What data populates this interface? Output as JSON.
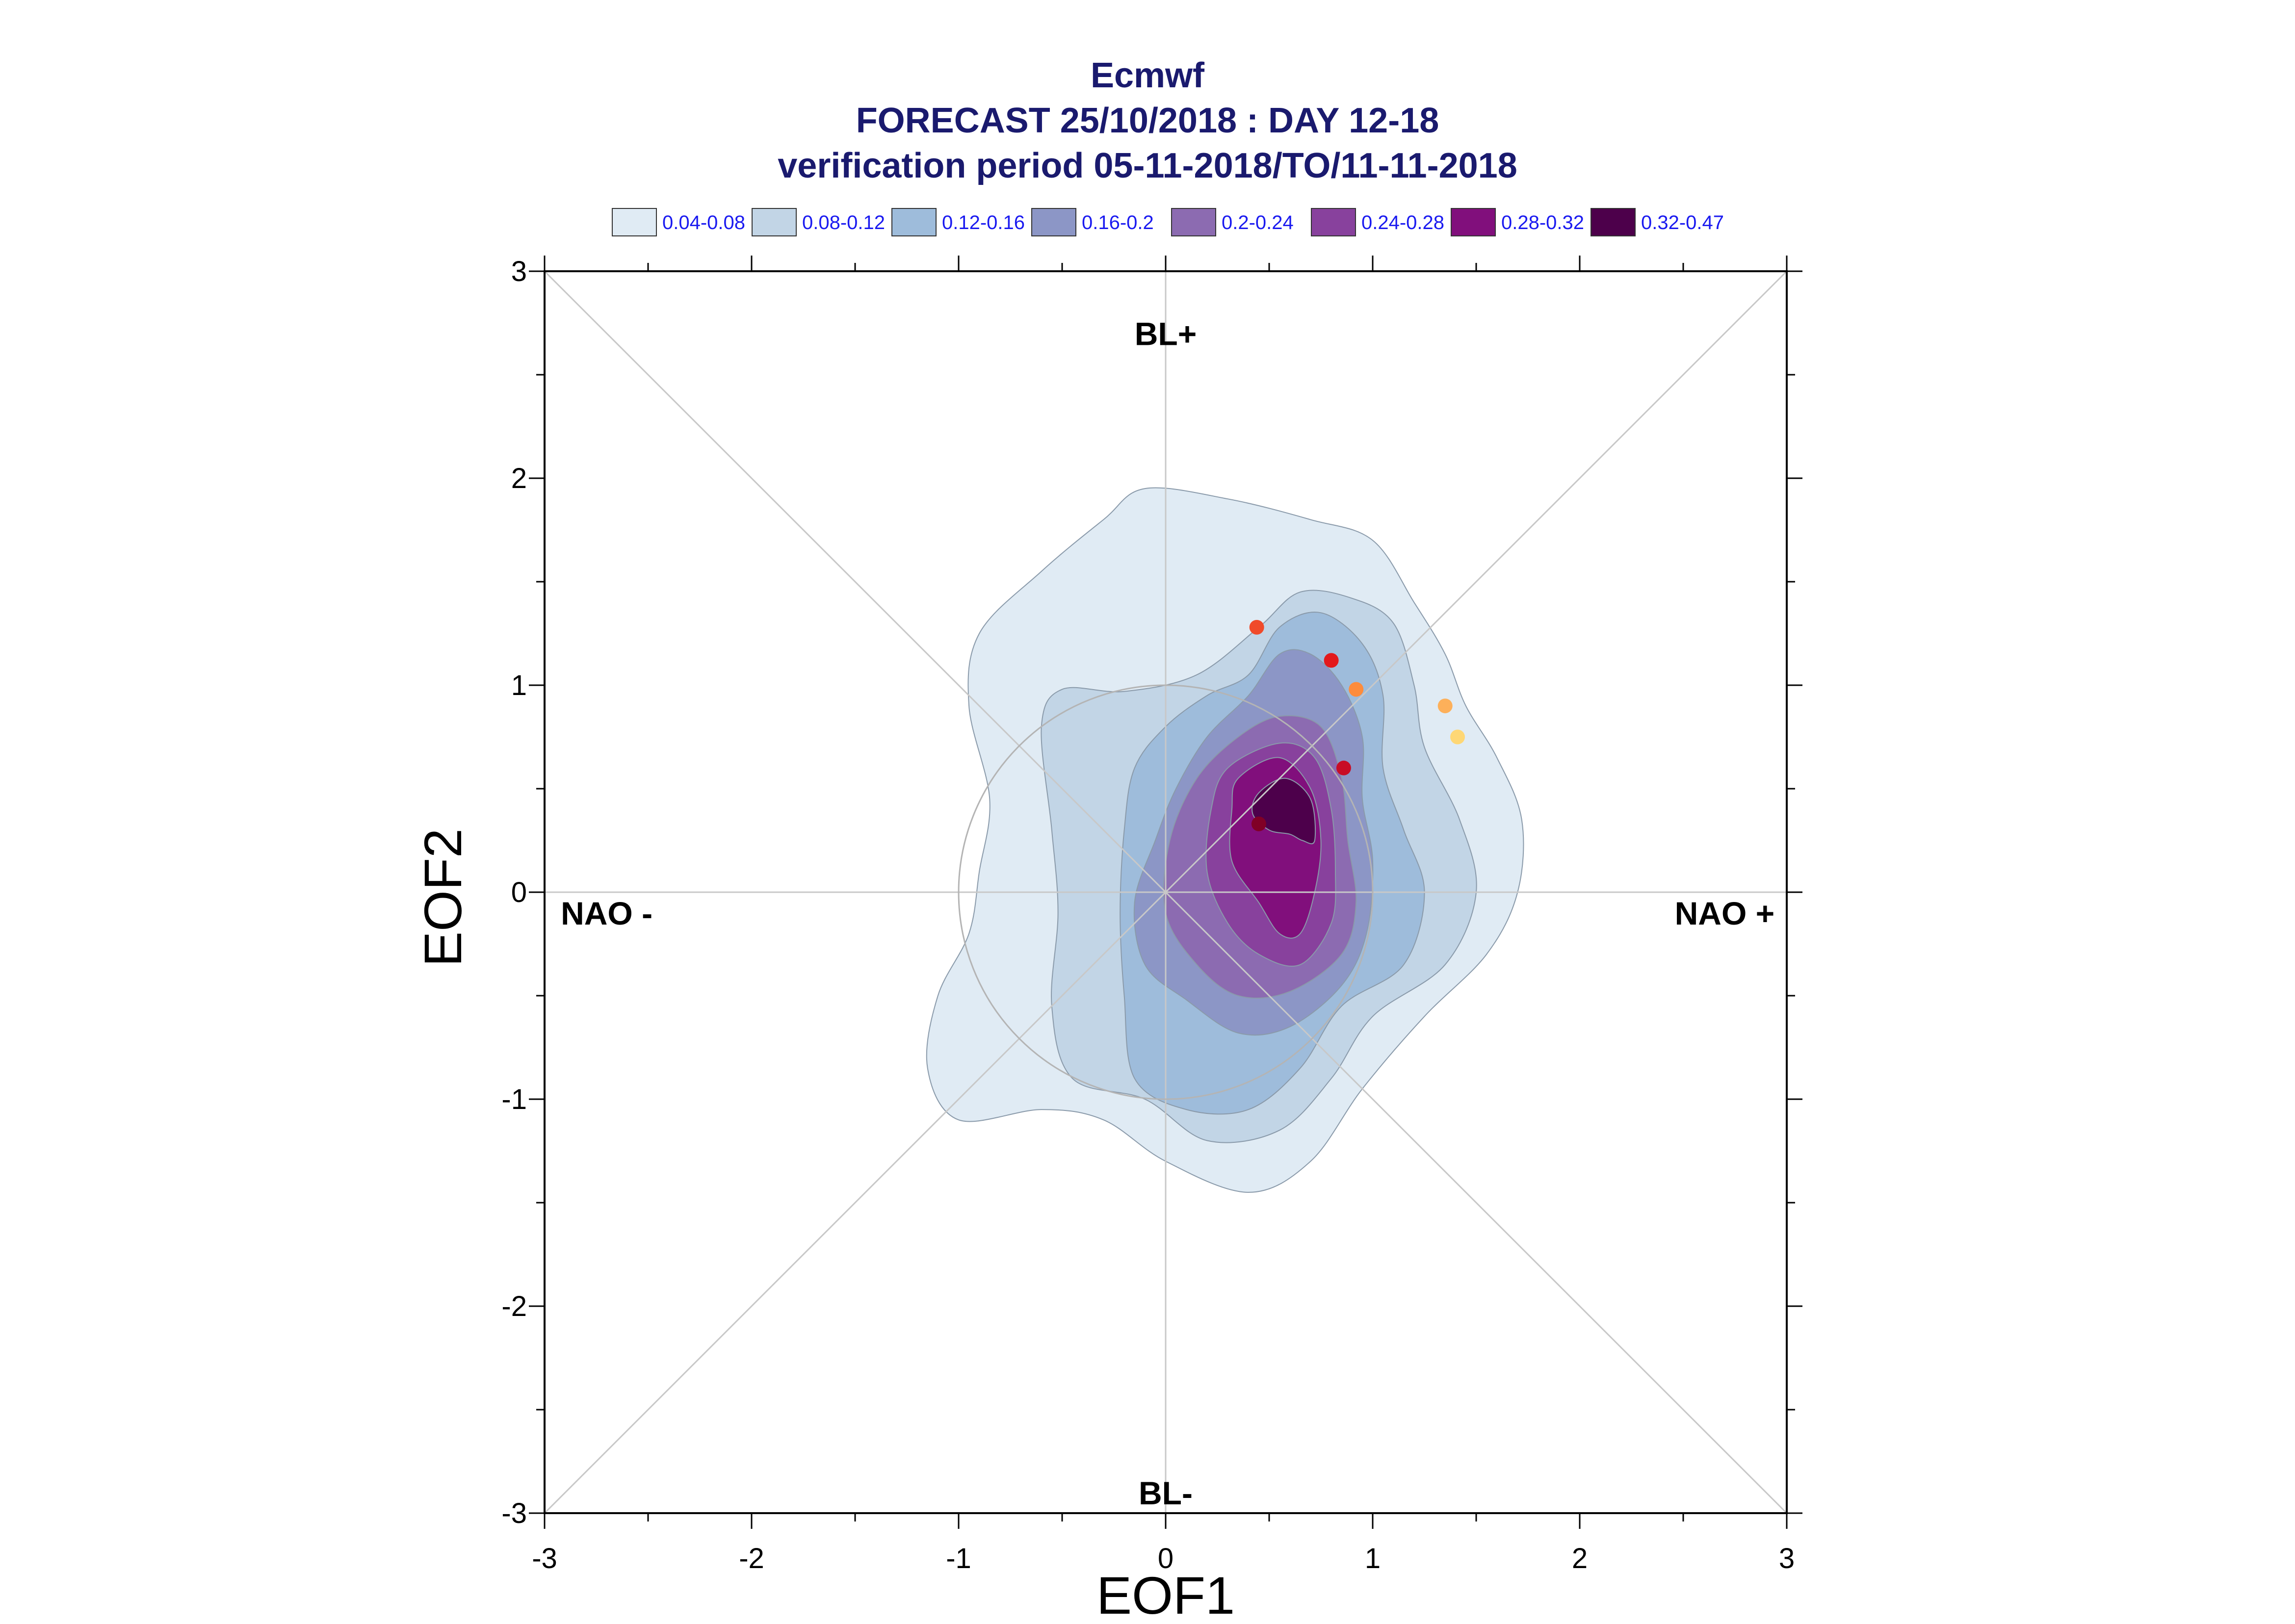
{
  "chart_data": {
    "type": "contour-scatter",
    "title": "Ecmwf",
    "subtitle_lines": [
      "FORECAST 25/10/2018 : DAY 12-18",
      "verification period 05-11-2018/TO/11-11-2018"
    ],
    "xlabel": "EOF1",
    "ylabel": "EOF2",
    "xlim": [
      -3,
      3
    ],
    "ylim": [
      -3,
      3
    ],
    "xticks": [
      "-3",
      "-2",
      "-1",
      "0",
      "1",
      "2",
      "3"
    ],
    "yticks": [
      "-3",
      "-2",
      "-1",
      "0",
      "1",
      "2",
      "3"
    ],
    "grid": false,
    "legend_placement": "top",
    "legend": [
      {
        "label": "0.04-0.08",
        "color": "#e0ebf4"
      },
      {
        "label": "0.08-0.12",
        "color": "#c2d5e6"
      },
      {
        "label": "0.12-0.16",
        "color": "#9ebcdb"
      },
      {
        "label": "0.16-0.2",
        "color": "#8c96c6"
      },
      {
        "label": "0.2-0.24",
        "color": "#8c6bb1"
      },
      {
        "label": "0.24-0.28",
        "color": "#88419d"
      },
      {
        "label": "0.28-0.32",
        "color": "#810f7c"
      },
      {
        "label": "0.32-0.47",
        "color": "#4d004b"
      }
    ],
    "regime_labels": [
      {
        "label": "BL+",
        "x": 0.0,
        "y": 2.7
      },
      {
        "label": "BL-",
        "x": 0.0,
        "y": -2.9
      },
      {
        "label": "NAO -",
        "x": -2.7,
        "y": -0.1
      },
      {
        "label": "NAO +",
        "x": 2.7,
        "y": -0.1
      }
    ],
    "reference_circle_radius": 1.0,
    "contours": [
      {
        "level": "0.04-0.08",
        "points": [
          [
            -0.1,
            1.95
          ],
          [
            0.3,
            1.9
          ],
          [
            0.7,
            1.8
          ],
          [
            1.0,
            1.7
          ],
          [
            1.2,
            1.4
          ],
          [
            1.35,
            1.15
          ],
          [
            1.45,
            0.9
          ],
          [
            1.6,
            0.65
          ],
          [
            1.72,
            0.35
          ],
          [
            1.7,
            0.0
          ],
          [
            1.55,
            -0.3
          ],
          [
            1.25,
            -0.6
          ],
          [
            0.95,
            -0.95
          ],
          [
            0.7,
            -1.3
          ],
          [
            0.4,
            -1.45
          ],
          [
            0.0,
            -1.3
          ],
          [
            -0.3,
            -1.1
          ],
          [
            -0.6,
            -1.05
          ],
          [
            -1.0,
            -1.1
          ],
          [
            -1.15,
            -0.85
          ],
          [
            -1.1,
            -0.5
          ],
          [
            -0.95,
            -0.2
          ],
          [
            -0.9,
            0.1
          ],
          [
            -0.85,
            0.45
          ],
          [
            -0.95,
            0.9
          ],
          [
            -0.9,
            1.25
          ],
          [
            -0.6,
            1.55
          ],
          [
            -0.3,
            1.8
          ]
        ]
      },
      {
        "level": "0.08-0.12",
        "points": [
          [
            -0.5,
            0.98
          ],
          [
            -0.2,
            0.97
          ],
          [
            0.15,
            1.05
          ],
          [
            0.45,
            1.28
          ],
          [
            0.65,
            1.45
          ],
          [
            0.9,
            1.42
          ],
          [
            1.1,
            1.3
          ],
          [
            1.2,
            1.0
          ],
          [
            1.25,
            0.7
          ],
          [
            1.42,
            0.35
          ],
          [
            1.5,
            0.0
          ],
          [
            1.35,
            -0.35
          ],
          [
            1.0,
            -0.6
          ],
          [
            0.8,
            -0.9
          ],
          [
            0.55,
            -1.15
          ],
          [
            0.2,
            -1.2
          ],
          [
            -0.1,
            -1.0
          ],
          [
            -0.45,
            -0.9
          ],
          [
            -0.55,
            -0.55
          ],
          [
            -0.52,
            -0.1
          ],
          [
            -0.55,
            0.3
          ],
          [
            -0.6,
            0.8
          ]
        ]
      },
      {
        "level": "0.12-0.16",
        "points": [
          [
            -0.15,
            0.6
          ],
          [
            0.0,
            0.8
          ],
          [
            0.2,
            0.95
          ],
          [
            0.4,
            1.05
          ],
          [
            0.55,
            1.28
          ],
          [
            0.75,
            1.35
          ],
          [
            0.95,
            1.2
          ],
          [
            1.05,
            0.95
          ],
          [
            1.05,
            0.6
          ],
          [
            1.15,
            0.3
          ],
          [
            1.25,
            0.0
          ],
          [
            1.15,
            -0.35
          ],
          [
            0.85,
            -0.55
          ],
          [
            0.65,
            -0.85
          ],
          [
            0.4,
            -1.05
          ],
          [
            0.1,
            -1.05
          ],
          [
            -0.15,
            -0.9
          ],
          [
            -0.2,
            -0.5
          ],
          [
            -0.22,
            -0.1
          ],
          [
            -0.2,
            0.3
          ]
        ]
      },
      {
        "level": "0.16-0.2",
        "points": [
          [
            0.05,
            0.5
          ],
          [
            0.2,
            0.75
          ],
          [
            0.4,
            0.95
          ],
          [
            0.55,
            1.15
          ],
          [
            0.7,
            1.15
          ],
          [
            0.85,
            1.0
          ],
          [
            0.95,
            0.75
          ],
          [
            0.95,
            0.45
          ],
          [
            1.0,
            0.15
          ],
          [
            0.97,
            -0.2
          ],
          [
            0.85,
            -0.45
          ],
          [
            0.6,
            -0.65
          ],
          [
            0.35,
            -0.68
          ],
          [
            0.1,
            -0.52
          ],
          [
            -0.1,
            -0.35
          ],
          [
            -0.15,
            -0.05
          ],
          [
            -0.05,
            0.25
          ]
        ]
      },
      {
        "level": "0.2-0.24",
        "points": [
          [
            0.15,
            0.55
          ],
          [
            0.35,
            0.75
          ],
          [
            0.55,
            0.85
          ],
          [
            0.75,
            0.8
          ],
          [
            0.85,
            0.55
          ],
          [
            0.88,
            0.25
          ],
          [
            0.92,
            -0.05
          ],
          [
            0.85,
            -0.3
          ],
          [
            0.6,
            -0.48
          ],
          [
            0.35,
            -0.5
          ],
          [
            0.15,
            -0.35
          ],
          [
            0.0,
            -0.1
          ],
          [
            0.02,
            0.25
          ]
        ]
      },
      {
        "level": "0.24-0.28",
        "points": [
          [
            0.3,
            0.6
          ],
          [
            0.55,
            0.72
          ],
          [
            0.72,
            0.65
          ],
          [
            0.8,
            0.4
          ],
          [
            0.82,
            0.1
          ],
          [
            0.8,
            -0.15
          ],
          [
            0.65,
            -0.35
          ],
          [
            0.45,
            -0.3
          ],
          [
            0.3,
            -0.15
          ],
          [
            0.2,
            0.1
          ],
          [
            0.22,
            0.4
          ]
        ]
      },
      {
        "level": "0.28-0.32",
        "points": [
          [
            0.35,
            0.55
          ],
          [
            0.55,
            0.65
          ],
          [
            0.7,
            0.5
          ],
          [
            0.75,
            0.25
          ],
          [
            0.72,
            0.0
          ],
          [
            0.65,
            -0.2
          ],
          [
            0.55,
            -0.2
          ],
          [
            0.45,
            -0.05
          ],
          [
            0.32,
            0.15
          ],
          [
            0.32,
            0.4
          ]
        ]
      },
      {
        "level": "0.32-0.47",
        "points": [
          [
            0.45,
            0.48
          ],
          [
            0.58,
            0.55
          ],
          [
            0.7,
            0.45
          ],
          [
            0.72,
            0.25
          ],
          [
            0.66,
            0.25
          ],
          [
            0.6,
            0.28
          ],
          [
            0.5,
            0.3
          ],
          [
            0.42,
            0.38
          ]
        ]
      }
    ],
    "points": [
      {
        "x": 0.44,
        "y": 1.28,
        "color": "#f04a2a"
      },
      {
        "x": 0.8,
        "y": 1.12,
        "color": "#e3191c"
      },
      {
        "x": 0.92,
        "y": 0.98,
        "color": "#fd8c3c"
      },
      {
        "x": 1.35,
        "y": 0.9,
        "color": "#fdb05a"
      },
      {
        "x": 1.41,
        "y": 0.75,
        "color": "#fed775"
      },
      {
        "x": 0.86,
        "y": 0.6,
        "color": "#c80d26"
      },
      {
        "x": 0.45,
        "y": 0.33,
        "color": "#800026"
      }
    ]
  }
}
